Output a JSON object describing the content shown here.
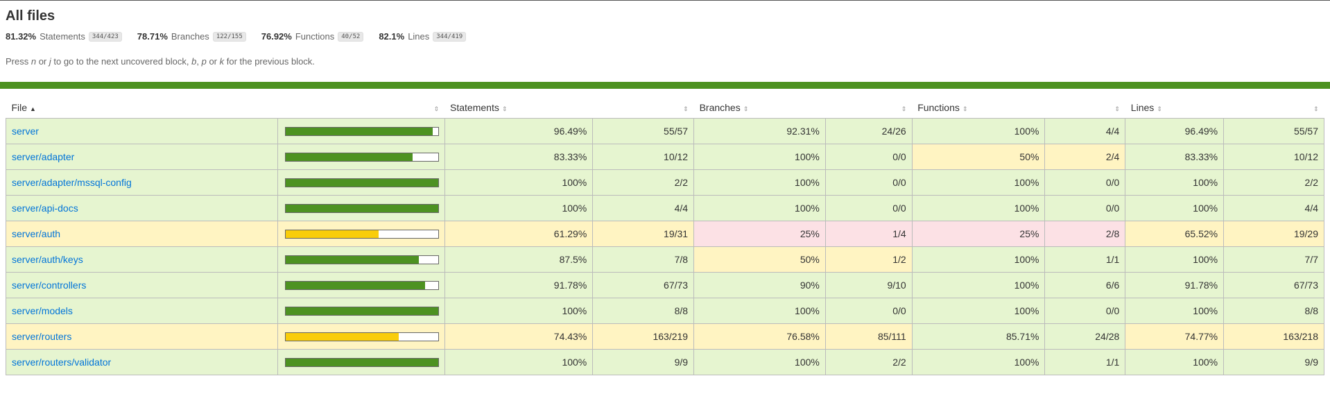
{
  "header": {
    "title": "All files",
    "summary": [
      {
        "pct": "81.32%",
        "label": "Statements",
        "fraction": "344/423"
      },
      {
        "pct": "78.71%",
        "label": "Branches",
        "fraction": "122/155"
      },
      {
        "pct": "76.92%",
        "label": "Functions",
        "fraction": "40/52"
      },
      {
        "pct": "82.1%",
        "label": "Lines",
        "fraction": "344/419"
      }
    ],
    "hint": {
      "p1": "Press ",
      "k1": "n",
      "p2": " or ",
      "k2": "j",
      "p3": " to go to the next uncovered block, ",
      "k3": "b",
      "p4": ", ",
      "k4": "p",
      "p5": " or ",
      "k5": "k",
      "p6": " for the previous block."
    }
  },
  "colors": {
    "high": "#e6f5d0",
    "medium": "#fff4c2",
    "low": "#fce1e5",
    "bar_high": "#4d9221",
    "bar_medium": "#f9cd0b",
    "status_line": "#4d9221",
    "link": "#0074d9"
  },
  "table": {
    "headers": {
      "file": "File",
      "file_sort": "▲",
      "sort": "⇕",
      "statements": "Statements",
      "branches": "Branches",
      "functions": "Functions",
      "lines": "Lines"
    },
    "rows": [
      {
        "file": "server",
        "level": "high",
        "pct": 96.49,
        "stmt_pct": "96.49%",
        "stmt": "55/57",
        "br_pct": "92.31%",
        "br": "24/26",
        "br_lvl": "high",
        "fn_pct": "100%",
        "fn": "4/4",
        "fn_lvl": "high",
        "ln_pct": "96.49%",
        "ln": "55/57"
      },
      {
        "file": "server/adapter",
        "level": "high",
        "pct": 83.33,
        "stmt_pct": "83.33%",
        "stmt": "10/12",
        "br_pct": "100%",
        "br": "0/0",
        "br_lvl": "high",
        "fn_pct": "50%",
        "fn": "2/4",
        "fn_lvl": "medium",
        "ln_pct": "83.33%",
        "ln": "10/12"
      },
      {
        "file": "server/adapter/mssql-config",
        "level": "high",
        "pct": 100,
        "stmt_pct": "100%",
        "stmt": "2/2",
        "br_pct": "100%",
        "br": "0/0",
        "br_lvl": "high",
        "fn_pct": "100%",
        "fn": "0/0",
        "fn_lvl": "high",
        "ln_pct": "100%",
        "ln": "2/2"
      },
      {
        "file": "server/api-docs",
        "level": "high",
        "pct": 100,
        "stmt_pct": "100%",
        "stmt": "4/4",
        "br_pct": "100%",
        "br": "0/0",
        "br_lvl": "high",
        "fn_pct": "100%",
        "fn": "0/0",
        "fn_lvl": "high",
        "ln_pct": "100%",
        "ln": "4/4"
      },
      {
        "file": "server/auth",
        "level": "medium",
        "pct": 61.29,
        "stmt_pct": "61.29%",
        "stmt": "19/31",
        "br_pct": "25%",
        "br": "1/4",
        "br_lvl": "low",
        "fn_pct": "25%",
        "fn": "2/8",
        "fn_lvl": "low",
        "ln_pct": "65.52%",
        "ln": "19/29"
      },
      {
        "file": "server/auth/keys",
        "level": "high",
        "pct": 87.5,
        "stmt_pct": "87.5%",
        "stmt": "7/8",
        "br_pct": "50%",
        "br": "1/2",
        "br_lvl": "medium",
        "fn_pct": "100%",
        "fn": "1/1",
        "fn_lvl": "high",
        "ln_pct": "100%",
        "ln": "7/7"
      },
      {
        "file": "server/controllers",
        "level": "high",
        "pct": 91.78,
        "stmt_pct": "91.78%",
        "stmt": "67/73",
        "br_pct": "90%",
        "br": "9/10",
        "br_lvl": "high",
        "fn_pct": "100%",
        "fn": "6/6",
        "fn_lvl": "high",
        "ln_pct": "91.78%",
        "ln": "67/73"
      },
      {
        "file": "server/models",
        "level": "high",
        "pct": 100,
        "stmt_pct": "100%",
        "stmt": "8/8",
        "br_pct": "100%",
        "br": "0/0",
        "br_lvl": "high",
        "fn_pct": "100%",
        "fn": "0/0",
        "fn_lvl": "high",
        "ln_pct": "100%",
        "ln": "8/8"
      },
      {
        "file": "server/routers",
        "level": "medium",
        "pct": 74.43,
        "stmt_pct": "74.43%",
        "stmt": "163/219",
        "br_pct": "76.58%",
        "br": "85/111",
        "br_lvl": "medium",
        "fn_pct": "85.71%",
        "fn": "24/28",
        "fn_lvl": "high",
        "ln_pct": "74.77%",
        "ln": "163/218"
      },
      {
        "file": "server/routers/validator",
        "level": "high",
        "pct": 100,
        "stmt_pct": "100%",
        "stmt": "9/9",
        "br_pct": "100%",
        "br": "2/2",
        "br_lvl": "high",
        "fn_pct": "100%",
        "fn": "1/1",
        "fn_lvl": "high",
        "ln_pct": "100%",
        "ln": "9/9"
      }
    ]
  }
}
